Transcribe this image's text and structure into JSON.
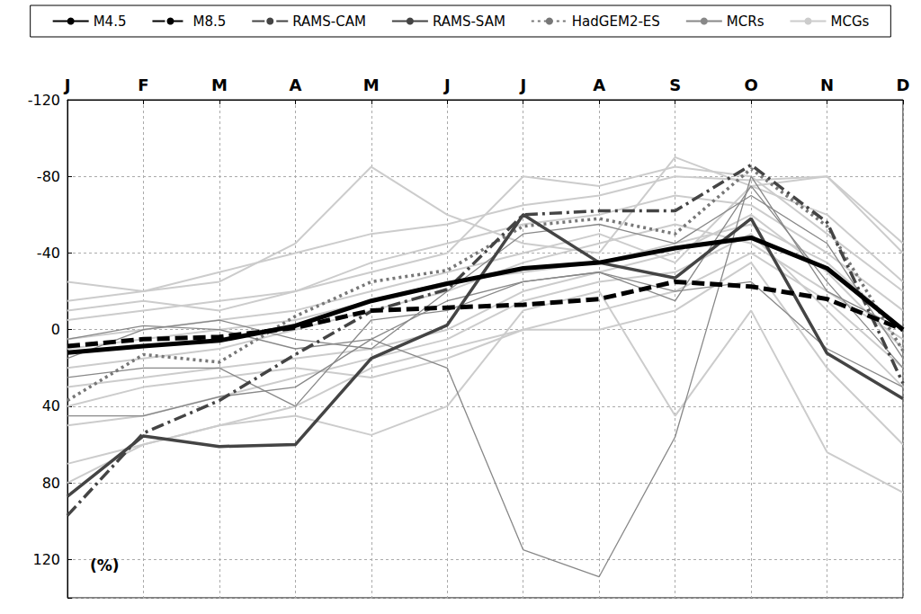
{
  "chart_data": {
    "type": "line",
    "ylabel": "(%)",
    "categories": [
      "J",
      "F",
      "M",
      "A",
      "M",
      "J",
      "J",
      "A",
      "S",
      "O",
      "N",
      "D"
    ],
    "ylim": [
      -120,
      140
    ],
    "yticks": [
      -120,
      -80,
      -40,
      0,
      40,
      80,
      120
    ],
    "grid": true,
    "legend": "top",
    "series": [
      {
        "name": "MCGs",
        "color": "#cccccc",
        "line_style": "solid",
        "values": [
          -25,
          -20,
          -25,
          -45,
          -85,
          -60,
          -45,
          -40,
          -90,
          -75,
          -80,
          -40
        ]
      },
      {
        "name": "MCGs",
        "color": "#cccccc",
        "line_style": "solid",
        "values": [
          70,
          60,
          50,
          45,
          55,
          40,
          -10,
          -20,
          45,
          -10,
          64,
          85
        ]
      },
      {
        "name": "MCGs",
        "color": "#cccccc",
        "line_style": "solid",
        "values": [
          -10,
          -15,
          -10,
          -20,
          -30,
          -40,
          -80,
          -75,
          -85,
          -80,
          -50,
          -20
        ]
      },
      {
        "name": "MCGs",
        "color": "#cccccc",
        "line_style": "solid",
        "values": [
          30,
          25,
          20,
          15,
          10,
          0,
          -20,
          -30,
          -40,
          -60,
          -30,
          10
        ]
      },
      {
        "name": "MCGs",
        "color": "#cccccc",
        "line_style": "solid",
        "values": [
          -5,
          -10,
          -15,
          -20,
          -35,
          -45,
          -55,
          -60,
          -70,
          -65,
          -40,
          -10
        ]
      },
      {
        "name": "MCGs",
        "color": "#cccccc",
        "line_style": "solid",
        "values": [
          20,
          15,
          10,
          0,
          -10,
          -20,
          -35,
          -45,
          -55,
          -45,
          -20,
          5
        ]
      },
      {
        "name": "MCGs",
        "color": "#cccccc",
        "line_style": "solid",
        "values": [
          80,
          60,
          50,
          40,
          20,
          10,
          0,
          0,
          -10,
          -35,
          20,
          60
        ]
      },
      {
        "name": "MCGs",
        "color": "#cccccc",
        "line_style": "solid",
        "values": [
          5,
          0,
          -5,
          -10,
          -20,
          -30,
          -40,
          -50,
          -35,
          -75,
          -60,
          -25
        ]
      },
      {
        "name": "MCGs",
        "color": "#cccccc",
        "line_style": "solid",
        "values": [
          50,
          45,
          35,
          25,
          15,
          5,
          -15,
          -25,
          -30,
          -50,
          -10,
          30
        ]
      },
      {
        "name": "MCGs",
        "color": "#cccccc",
        "line_style": "solid",
        "values": [
          -15,
          -20,
          -30,
          -40,
          -50,
          -55,
          -65,
          -70,
          -80,
          -78,
          -80,
          -45
        ]
      },
      {
        "name": "MCGs",
        "color": "#cccccc",
        "line_style": "solid",
        "values": [
          10,
          5,
          0,
          -5,
          -15,
          -25,
          -30,
          -35,
          -45,
          -55,
          -35,
          0
        ]
      },
      {
        "name": "MCGs",
        "color": "#cccccc",
        "line_style": "solid",
        "values": [
          40,
          30,
          25,
          20,
          25,
          15,
          0,
          -10,
          -20,
          -40,
          -15,
          20
        ]
      },
      {
        "name": "MCRs",
        "color": "#888888",
        "line_style": "solid",
        "values": [
          5,
          -2,
          0,
          10,
          5,
          20,
          115,
          129,
          56,
          -80,
          -20,
          0
        ]
      },
      {
        "name": "MCRs",
        "color": "#888888",
        "line_style": "solid",
        "values": [
          45,
          45,
          35,
          30,
          5,
          -15,
          -25,
          -30,
          -15,
          -75,
          -25,
          20
        ]
      },
      {
        "name": "MCRs",
        "color": "#888888",
        "line_style": "solid",
        "values": [
          15,
          0,
          -5,
          5,
          10,
          -20,
          -50,
          -55,
          -45,
          -70,
          -45,
          15
        ]
      },
      {
        "name": "MCRs",
        "color": "#888888",
        "line_style": "solid",
        "values": [
          25,
          20,
          20,
          40,
          -5,
          -10,
          -25,
          -30,
          -20,
          -25,
          10,
          30
        ]
      },
      {
        "name": "HadGEM2-ES",
        "color": "#777777",
        "line_style": "dotted",
        "values": [
          37,
          13,
          17,
          -7,
          -25,
          -31,
          -54,
          -58,
          -50,
          -84,
          -54,
          11
        ]
      },
      {
        "name": "RAMS-SAM",
        "color": "#444444",
        "line_style": "solid",
        "values": [
          87,
          55.5,
          61,
          60,
          15,
          -2.4,
          -60,
          -35,
          -27,
          -58,
          12.4,
          36
        ]
      },
      {
        "name": "RAMS-CAM",
        "color": "#444444",
        "line_style": "dashdot",
        "values": [
          97,
          54,
          37,
          13,
          -9.6,
          -21,
          -60,
          -62,
          -62,
          -86,
          -56,
          28
        ]
      },
      {
        "name": "M8.5",
        "color": "#000000",
        "line_style": "dashed",
        "values": [
          8.6,
          5,
          3.8,
          -1,
          -10,
          -11.5,
          -13,
          -16,
          -25,
          -22.5,
          -16,
          0
        ]
      },
      {
        "name": "M4.5",
        "color": "#000000",
        "line_style": "solid",
        "values": [
          12,
          8.6,
          5.7,
          -2,
          -15,
          -24,
          -32,
          -35,
          -42.6,
          -48,
          -32,
          0
        ]
      }
    ]
  }
}
